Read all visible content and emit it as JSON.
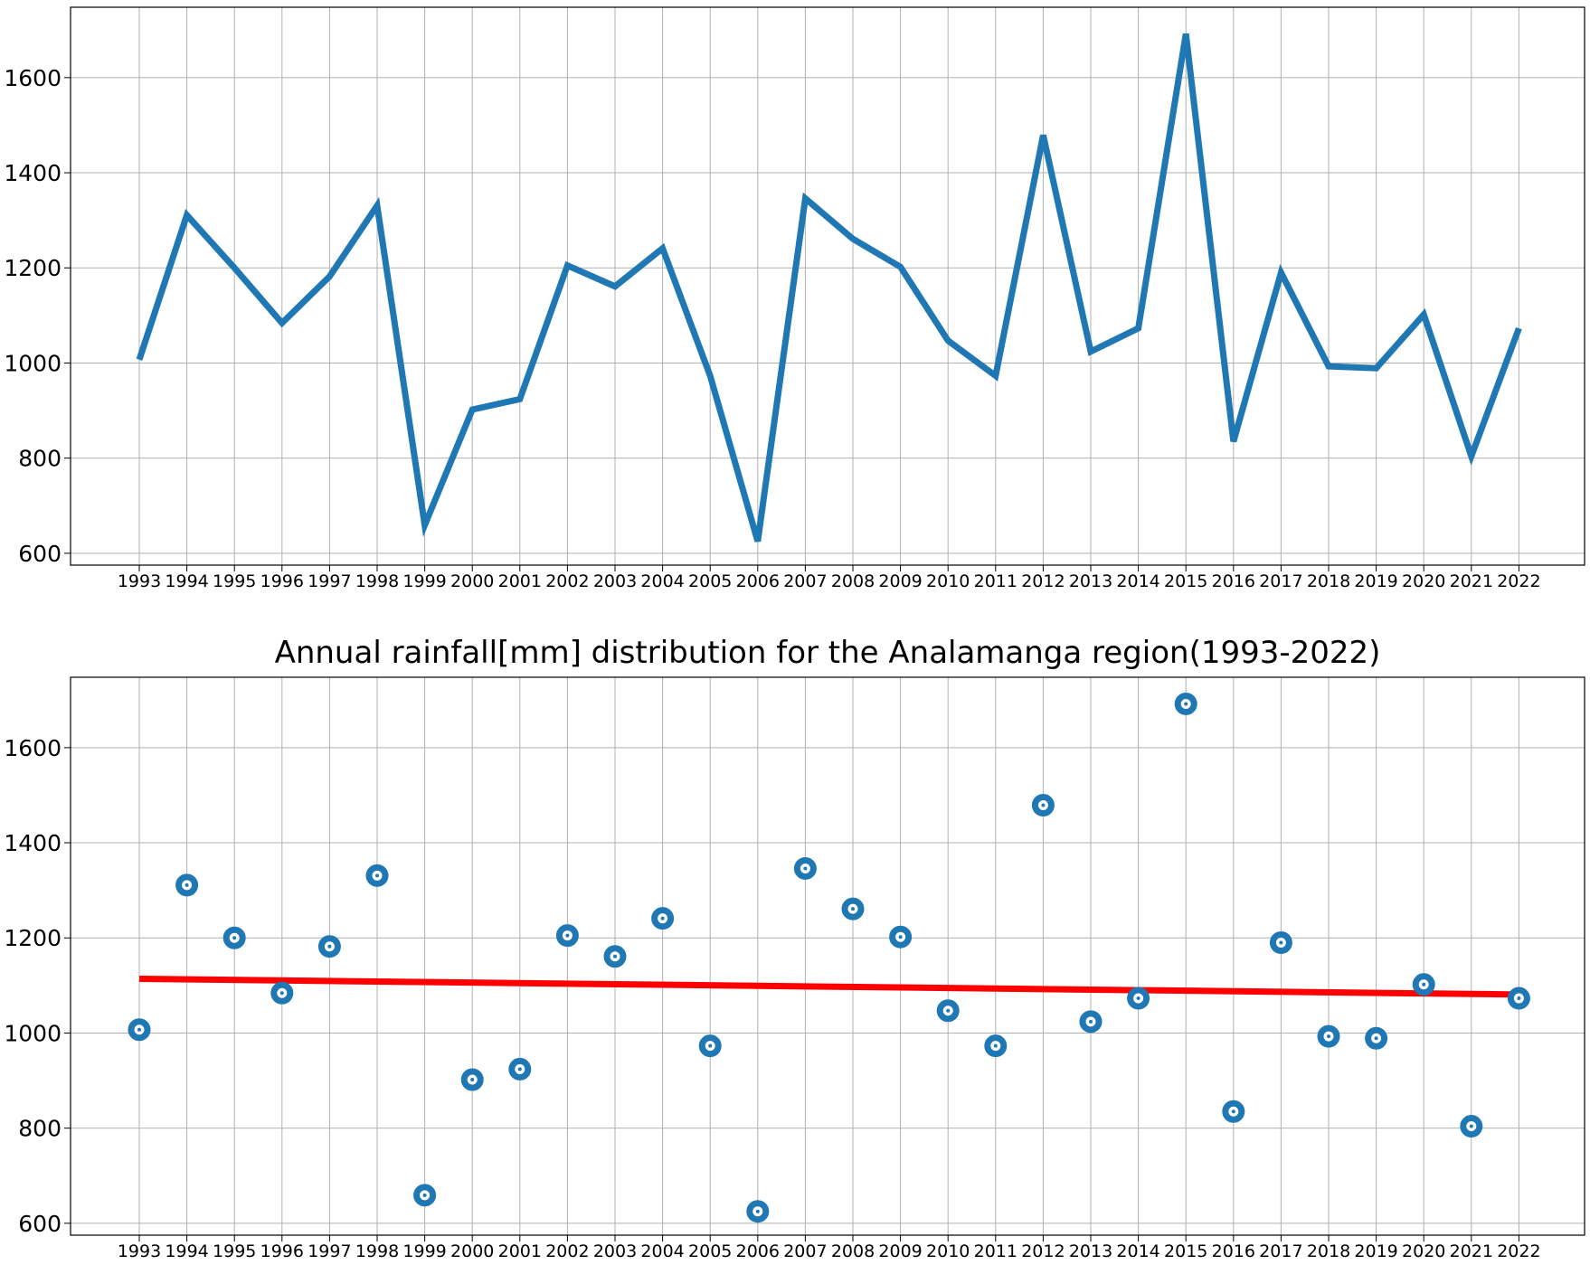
{
  "chart_data": [
    {
      "type": "line",
      "title": "",
      "xlabel": "",
      "ylabel": "",
      "categories": [
        "1993",
        "1994",
        "1995",
        "1996",
        "1997",
        "1998",
        "1999",
        "2000",
        "2001",
        "2002",
        "2003",
        "2004",
        "2005",
        "2006",
        "2007",
        "2008",
        "2009",
        "2010",
        "2011",
        "2012",
        "2013",
        "2014",
        "2015",
        "2016",
        "2017",
        "2018",
        "2019",
        "2020",
        "2021",
        "2022"
      ],
      "values": [
        1007,
        1311,
        1200,
        1084,
        1182,
        1331,
        659,
        902,
        924,
        1205,
        1161,
        1241,
        973,
        625,
        1346,
        1261,
        1202,
        1047,
        973,
        1479,
        1024,
        1073,
        1692,
        835,
        1190,
        993,
        989,
        1102,
        804,
        1073
      ],
      "ylim": [
        575,
        1748
      ],
      "yticks": [
        600,
        800,
        1000,
        1200,
        1400,
        1600
      ],
      "grid": true,
      "color": "#1f77b4"
    },
    {
      "type": "scatter",
      "title": "Annual rainfall[mm] distribution for the Analamanga region(1993-2022)",
      "xlabel": "",
      "ylabel": "",
      "categories": [
        "1993",
        "1994",
        "1995",
        "1996",
        "1997",
        "1998",
        "1999",
        "2000",
        "2001",
        "2002",
        "2003",
        "2004",
        "2005",
        "2006",
        "2007",
        "2008",
        "2009",
        "2010",
        "2011",
        "2012",
        "2013",
        "2014",
        "2015",
        "2016",
        "2017",
        "2018",
        "2019",
        "2020",
        "2021",
        "2022"
      ],
      "values": [
        1007,
        1311,
        1200,
        1084,
        1182,
        1331,
        659,
        902,
        924,
        1205,
        1161,
        1241,
        973,
        625,
        1346,
        1261,
        1202,
        1047,
        973,
        1479,
        1024,
        1073,
        1692,
        835,
        1190,
        993,
        989,
        1102,
        804,
        1073
      ],
      "trend": {
        "start": 1114,
        "end": 1081,
        "color": "#ff0000"
      },
      "ylim": [
        575,
        1748
      ],
      "yticks": [
        600,
        800,
        1000,
        1200,
        1400,
        1600
      ],
      "grid": true,
      "color": "#1f77b4"
    }
  ]
}
